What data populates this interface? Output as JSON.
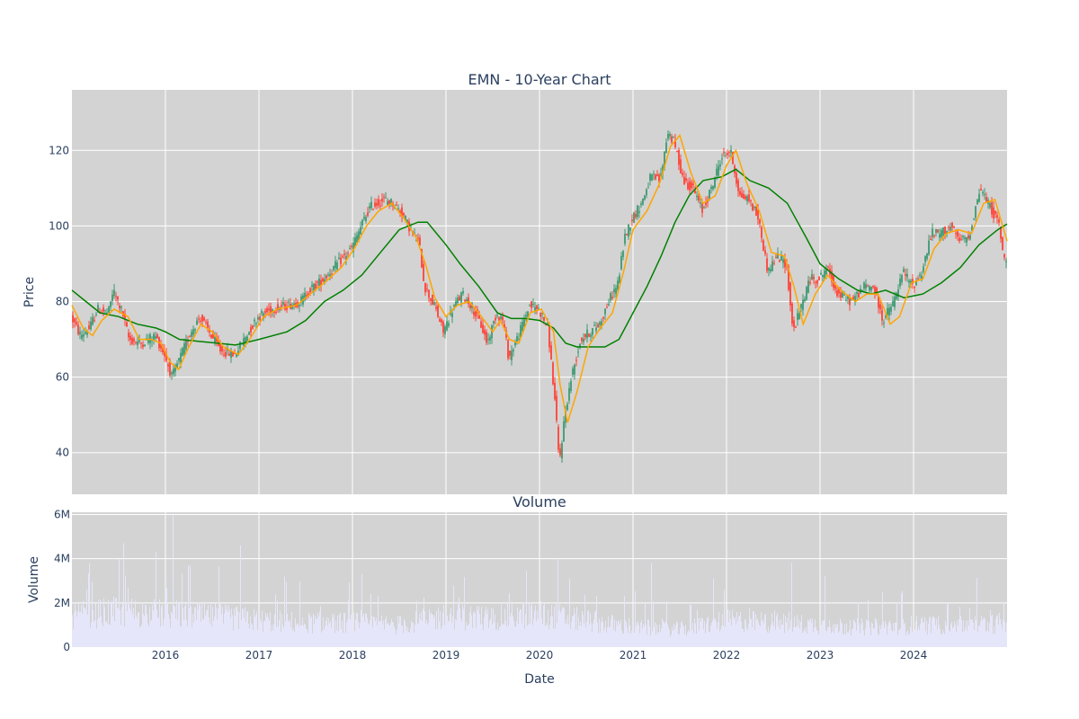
{
  "chart_data": [
    {
      "type": "candlestick",
      "title": "EMN - 10-Year Chart",
      "ylabel": "Price",
      "ylim": [
        29,
        136
      ],
      "yticks": [
        40,
        60,
        80,
        100,
        120
      ],
      "x_range": [
        2015.0,
        2025.0
      ],
      "grid": true,
      "legend": "none",
      "colors": {
        "up": "#3d9970",
        "down": "#ff4136",
        "ma_short": "#ffa500",
        "ma_long": "#008000",
        "plot_bg": "#d3d3d3"
      },
      "price_path": [
        [
          2015.0,
          76
        ],
        [
          2015.1,
          71
        ],
        [
          2015.2,
          73
        ],
        [
          2015.28,
          78
        ],
        [
          2015.4,
          77
        ],
        [
          2015.45,
          83
        ],
        [
          2015.55,
          77
        ],
        [
          2015.62,
          70
        ],
        [
          2015.75,
          69
        ],
        [
          2015.9,
          71
        ],
        [
          2016.0,
          66
        ],
        [
          2016.08,
          60
        ],
        [
          2016.18,
          66
        ],
        [
          2016.28,
          72
        ],
        [
          2016.38,
          76
        ],
        [
          2016.5,
          71
        ],
        [
          2016.6,
          67
        ],
        [
          2016.75,
          66
        ],
        [
          2016.9,
          72
        ],
        [
          2017.0,
          76
        ],
        [
          2017.15,
          78
        ],
        [
          2017.3,
          79
        ],
        [
          2017.45,
          80
        ],
        [
          2017.55,
          83
        ],
        [
          2017.7,
          86
        ],
        [
          2017.85,
          90
        ],
        [
          2018.0,
          94
        ],
        [
          2018.12,
          101
        ],
        [
          2018.2,
          105
        ],
        [
          2018.35,
          107
        ],
        [
          2018.45,
          106
        ],
        [
          2018.55,
          103
        ],
        [
          2018.65,
          98
        ],
        [
          2018.72,
          96
        ],
        [
          2018.78,
          84
        ],
        [
          2018.9,
          78
        ],
        [
          2018.98,
          72
        ],
        [
          2019.08,
          78
        ],
        [
          2019.18,
          82
        ],
        [
          2019.28,
          79
        ],
        [
          2019.38,
          74
        ],
        [
          2019.45,
          69
        ],
        [
          2019.55,
          77
        ],
        [
          2019.62,
          75
        ],
        [
          2019.68,
          65
        ],
        [
          2019.8,
          72
        ],
        [
          2019.9,
          79
        ],
        [
          2020.0,
          78
        ],
        [
          2020.1,
          73
        ],
        [
          2020.18,
          52
        ],
        [
          2020.22,
          37
        ],
        [
          2020.28,
          50
        ],
        [
          2020.35,
          60
        ],
        [
          2020.45,
          70
        ],
        [
          2020.55,
          72
        ],
        [
          2020.65,
          74
        ],
        [
          2020.75,
          80
        ],
        [
          2020.85,
          85
        ],
        [
          2020.92,
          97
        ],
        [
          2021.0,
          102
        ],
        [
          2021.1,
          106
        ],
        [
          2021.2,
          113
        ],
        [
          2021.3,
          112
        ],
        [
          2021.38,
          125
        ],
        [
          2021.45,
          122
        ],
        [
          2021.55,
          112
        ],
        [
          2021.65,
          110
        ],
        [
          2021.75,
          104
        ],
        [
          2021.85,
          110
        ],
        [
          2021.95,
          118
        ],
        [
          2022.05,
          120
        ],
        [
          2022.15,
          108
        ],
        [
          2022.25,
          107
        ],
        [
          2022.35,
          102
        ],
        [
          2022.45,
          88
        ],
        [
          2022.55,
          92
        ],
        [
          2022.65,
          90
        ],
        [
          2022.72,
          72
        ],
        [
          2022.8,
          78
        ],
        [
          2022.9,
          86
        ],
        [
          2023.0,
          86
        ],
        [
          2023.08,
          89
        ],
        [
          2023.2,
          82
        ],
        [
          2023.35,
          80
        ],
        [
          2023.48,
          84
        ],
        [
          2023.58,
          84
        ],
        [
          2023.68,
          75
        ],
        [
          2023.8,
          80
        ],
        [
          2023.9,
          88
        ],
        [
          2024.0,
          84
        ],
        [
          2024.1,
          88
        ],
        [
          2024.2,
          98
        ],
        [
          2024.3,
          98
        ],
        [
          2024.4,
          100
        ],
        [
          2024.5,
          96
        ],
        [
          2024.6,
          97
        ],
        [
          2024.72,
          110
        ],
        [
          2024.85,
          104
        ],
        [
          2024.93,
          100
        ],
        [
          2024.97,
          91
        ],
        [
          2025.0,
          91
        ]
      ],
      "ma_short_path": [
        [
          2015.0,
          79
        ],
        [
          2015.12,
          73
        ],
        [
          2015.22,
          71
        ],
        [
          2015.32,
          75
        ],
        [
          2015.45,
          78
        ],
        [
          2015.6,
          76
        ],
        [
          2015.72,
          70
        ],
        [
          2015.85,
          70
        ],
        [
          2015.95,
          69
        ],
        [
          2016.05,
          64
        ],
        [
          2016.14,
          62
        ],
        [
          2016.25,
          68
        ],
        [
          2016.38,
          74
        ],
        [
          2016.5,
          72
        ],
        [
          2016.62,
          68
        ],
        [
          2016.78,
          66
        ],
        [
          2016.9,
          70
        ],
        [
          2017.05,
          76
        ],
        [
          2017.2,
          78
        ],
        [
          2017.4,
          79
        ],
        [
          2017.55,
          82
        ],
        [
          2017.7,
          85
        ],
        [
          2017.88,
          89
        ],
        [
          2018.02,
          94
        ],
        [
          2018.15,
          100
        ],
        [
          2018.28,
          104
        ],
        [
          2018.42,
          106
        ],
        [
          2018.55,
          102
        ],
        [
          2018.68,
          97
        ],
        [
          2018.78,
          90
        ],
        [
          2018.88,
          81
        ],
        [
          2019.0,
          76
        ],
        [
          2019.12,
          79
        ],
        [
          2019.25,
          80
        ],
        [
          2019.38,
          76
        ],
        [
          2019.5,
          72
        ],
        [
          2019.58,
          75
        ],
        [
          2019.68,
          70
        ],
        [
          2019.78,
          69
        ],
        [
          2019.9,
          77
        ],
        [
          2020.02,
          78
        ],
        [
          2020.15,
          72
        ],
        [
          2020.22,
          58
        ],
        [
          2020.3,
          48
        ],
        [
          2020.4,
          56
        ],
        [
          2020.52,
          68
        ],
        [
          2020.65,
          73
        ],
        [
          2020.78,
          77
        ],
        [
          2020.9,
          88
        ],
        [
          2021.0,
          99
        ],
        [
          2021.15,
          104
        ],
        [
          2021.28,
          111
        ],
        [
          2021.4,
          121
        ],
        [
          2021.5,
          124
        ],
        [
          2021.62,
          114
        ],
        [
          2021.75,
          106
        ],
        [
          2021.88,
          108
        ],
        [
          2022.0,
          116
        ],
        [
          2022.1,
          120
        ],
        [
          2022.22,
          111
        ],
        [
          2022.35,
          104
        ],
        [
          2022.48,
          93
        ],
        [
          2022.62,
          92
        ],
        [
          2022.72,
          84
        ],
        [
          2022.82,
          74
        ],
        [
          2022.95,
          82
        ],
        [
          2023.08,
          87
        ],
        [
          2023.22,
          83
        ],
        [
          2023.38,
          80
        ],
        [
          2023.5,
          82
        ],
        [
          2023.62,
          82
        ],
        [
          2023.75,
          74
        ],
        [
          2023.85,
          76
        ],
        [
          2023.98,
          85
        ],
        [
          2024.1,
          86
        ],
        [
          2024.22,
          94
        ],
        [
          2024.35,
          98
        ],
        [
          2024.48,
          99
        ],
        [
          2024.62,
          98
        ],
        [
          2024.75,
          106
        ],
        [
          2024.87,
          107
        ],
        [
          2025.0,
          96
        ]
      ],
      "ma_long_path": [
        [
          2015.0,
          83
        ],
        [
          2015.15,
          80
        ],
        [
          2015.3,
          77
        ],
        [
          2015.5,
          76
        ],
        [
          2015.7,
          74
        ],
        [
          2015.9,
          73
        ],
        [
          2016.0,
          72
        ],
        [
          2016.15,
          70
        ],
        [
          2016.35,
          69.5
        ],
        [
          2016.55,
          69
        ],
        [
          2016.75,
          68.5
        ],
        [
          2017.0,
          70
        ],
        [
          2017.3,
          72
        ],
        [
          2017.5,
          75
        ],
        [
          2017.7,
          80
        ],
        [
          2017.9,
          83
        ],
        [
          2018.1,
          87
        ],
        [
          2018.3,
          93
        ],
        [
          2018.5,
          99
        ],
        [
          2018.7,
          101
        ],
        [
          2018.8,
          101
        ],
        [
          2019.0,
          95
        ],
        [
          2019.15,
          90
        ],
        [
          2019.35,
          84
        ],
        [
          2019.55,
          77
        ],
        [
          2019.7,
          75.5
        ],
        [
          2019.85,
          75.5
        ],
        [
          2020.0,
          75
        ],
        [
          2020.15,
          73
        ],
        [
          2020.28,
          69
        ],
        [
          2020.4,
          68
        ],
        [
          2020.55,
          68
        ],
        [
          2020.7,
          68
        ],
        [
          2020.85,
          70
        ],
        [
          2021.0,
          77
        ],
        [
          2021.15,
          84
        ],
        [
          2021.3,
          92
        ],
        [
          2021.45,
          101
        ],
        [
          2021.6,
          108
        ],
        [
          2021.75,
          112
        ],
        [
          2021.95,
          113
        ],
        [
          2022.1,
          115
        ],
        [
          2022.25,
          112
        ],
        [
          2022.45,
          110
        ],
        [
          2022.65,
          106
        ],
        [
          2022.85,
          97
        ],
        [
          2023.0,
          90
        ],
        [
          2023.2,
          86
        ],
        [
          2023.4,
          83
        ],
        [
          2023.55,
          82
        ],
        [
          2023.7,
          83
        ],
        [
          2023.9,
          81
        ],
        [
          2024.1,
          82
        ],
        [
          2024.3,
          85
        ],
        [
          2024.5,
          89
        ],
        [
          2024.7,
          95
        ],
        [
          2024.9,
          99
        ],
        [
          2025.0,
          100.5
        ]
      ]
    },
    {
      "type": "bar",
      "title": "Volume",
      "xlabel": "Date",
      "ylabel": "Volume",
      "ylim": [
        0,
        6.1
      ],
      "yticks": [
        0,
        2,
        4,
        6
      ],
      "ytick_labels": [
        "0",
        "2M",
        "4M",
        "6M"
      ],
      "x_range": [
        2015.0,
        2025.0
      ],
      "xticks": [
        2016,
        2017,
        2018,
        2019,
        2020,
        2021,
        2022,
        2023,
        2024
      ],
      "xtick_labels": [
        "2016",
        "2017",
        "2018",
        "2019",
        "2020",
        "2021",
        "2022",
        "2023",
        "2024"
      ],
      "grid": true,
      "colors": {
        "bar": "#e6e6fa",
        "plot_bg": "#d3d3d3"
      },
      "volume_level_path_millions": [
        [
          2015.0,
          1.4
        ],
        [
          2015.5,
          1.6
        ],
        [
          2016.0,
          1.5
        ],
        [
          2016.5,
          1.4
        ],
        [
          2017.0,
          1.2
        ],
        [
          2017.5,
          1.1
        ],
        [
          2018.0,
          1.1
        ],
        [
          2018.5,
          1.0
        ],
        [
          2019.0,
          1.4
        ],
        [
          2019.5,
          1.3
        ],
        [
          2020.0,
          1.5
        ],
        [
          2020.5,
          1.2
        ],
        [
          2021.0,
          0.9
        ],
        [
          2021.5,
          0.8
        ],
        [
          2022.0,
          1.2
        ],
        [
          2022.5,
          1.1
        ],
        [
          2023.0,
          1.0
        ],
        [
          2023.5,
          0.9
        ],
        [
          2024.0,
          1.0
        ],
        [
          2024.5,
          1.0
        ],
        [
          2025.0,
          1.1
        ]
      ],
      "volume_spikes_millions": [
        [
          2015.55,
          4.7
        ],
        [
          2016.08,
          6.0
        ],
        [
          2016.8,
          4.6
        ],
        [
          2018.1,
          3.3
        ],
        [
          2020.2,
          4.0
        ],
        [
          2021.2,
          3.8
        ],
        [
          2022.7,
          3.8
        ],
        [
          2023.05,
          3.2
        ]
      ]
    }
  ]
}
